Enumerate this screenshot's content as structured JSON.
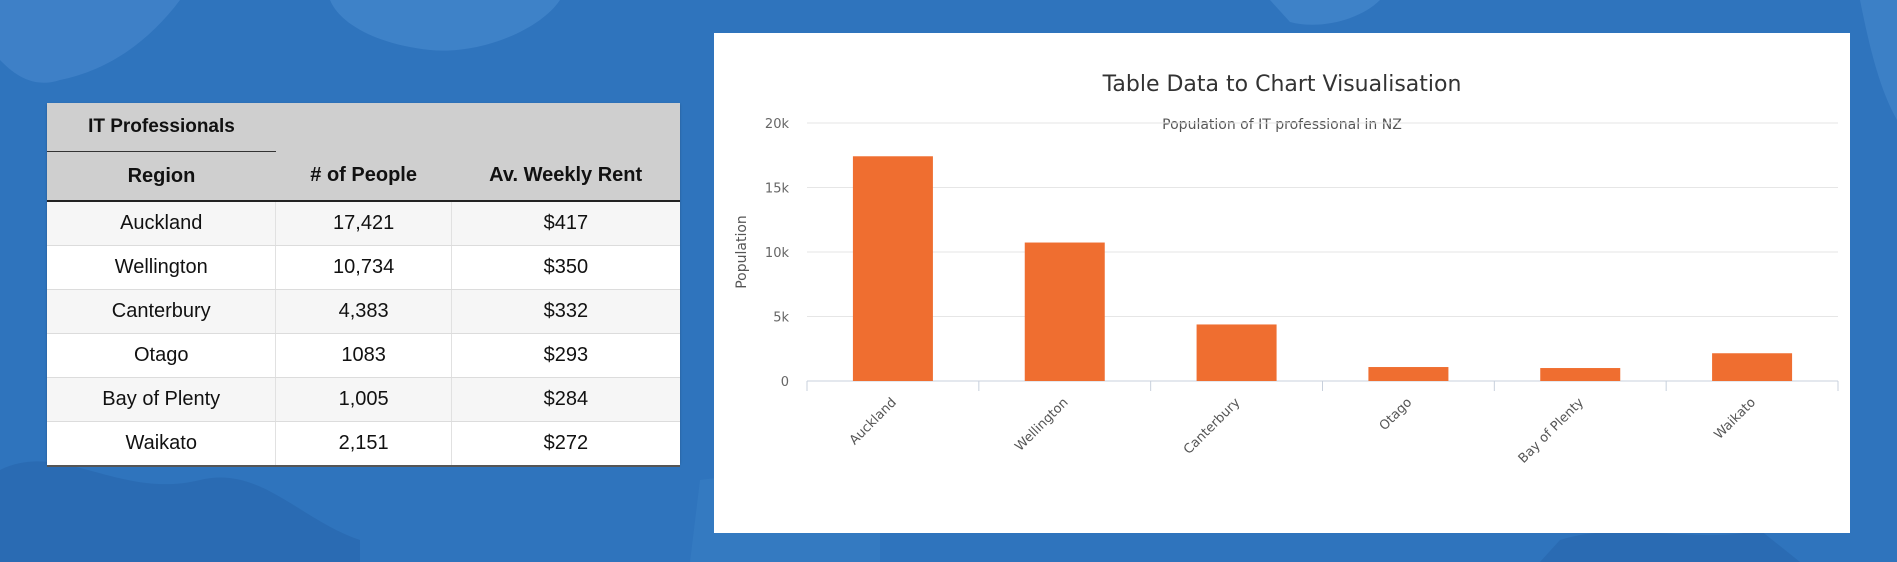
{
  "table": {
    "group_header": "IT Professionals",
    "columns": [
      "Region",
      "# of People",
      "Av. Weekly Rent"
    ],
    "rows": [
      [
        "Auckland",
        "17,421",
        "$417"
      ],
      [
        "Wellington",
        "10,734",
        "$350"
      ],
      [
        "Canterbury",
        "4,383",
        "$332"
      ],
      [
        "Otago",
        "1083",
        "$293"
      ],
      [
        "Bay of Plenty",
        "1,005",
        "$284"
      ],
      [
        "Waikato",
        "2,151",
        "$272"
      ]
    ]
  },
  "chart_data": {
    "type": "bar",
    "title": "Table Data to Chart Visualisation",
    "subtitle": "Population of IT professional in NZ",
    "xlabel": "",
    "ylabel": "Population",
    "categories": [
      "Auckland",
      "Wellington",
      "Canterbury",
      "Otago",
      "Bay of Plenty",
      "Waikato"
    ],
    "values": [
      17421,
      10734,
      4383,
      1083,
      1005,
      2151
    ],
    "ylim": [
      0,
      20000
    ],
    "yticks": [
      0,
      5000,
      10000,
      15000,
      20000
    ],
    "ytick_labels": [
      "0",
      "5k",
      "10k",
      "15k",
      "20k"
    ],
    "grid": true,
    "legend": "none",
    "bar_color": "#ef6e30"
  },
  "colors": {
    "background": "#2f74bd",
    "table_header": "#cfcfcf",
    "bar": "#ef6e30"
  }
}
